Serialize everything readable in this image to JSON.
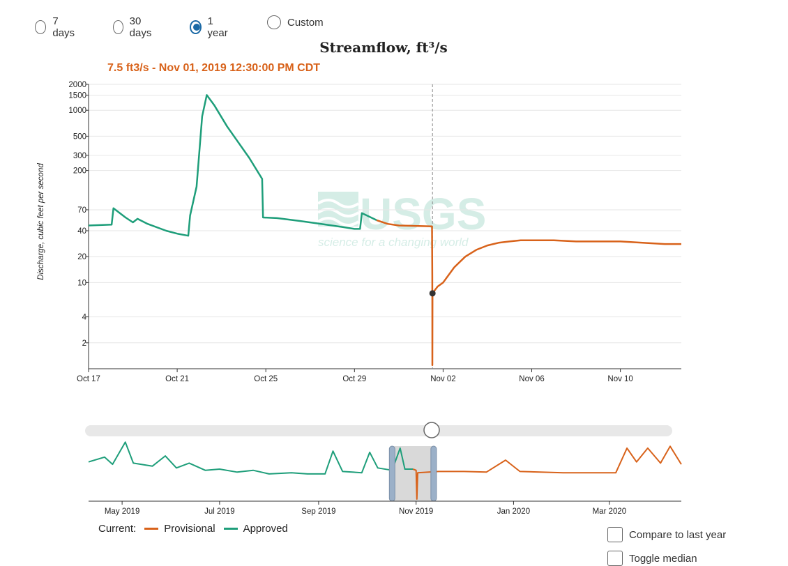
{
  "period_options": [
    {
      "label": "7 days",
      "selected": false
    },
    {
      "label": "30 days",
      "selected": false
    },
    {
      "label": "1 year",
      "selected": true
    },
    {
      "label": "Custom",
      "selected": false
    }
  ],
  "tooltip_text": "7.5 ft3/s - Nov 01, 2019 12:30:00 PM CDT",
  "watermark": {
    "logo": "USGS",
    "tagline": "science for a changing world"
  },
  "legend": {
    "title": "Current:",
    "items": [
      {
        "label": "Provisional",
        "color": "#d8621a"
      },
      {
        "label": "Approved",
        "color": "#1e9e7a"
      }
    ]
  },
  "checkboxes": [
    {
      "label": "Compare to last year",
      "checked": false
    },
    {
      "label": "Toggle median",
      "checked": false
    }
  ],
  "colors": {
    "approved": "#1e9e7a",
    "provisional": "#d8621a",
    "cursor_dot": "#333333",
    "brush": "#9bb0c8"
  },
  "chart_data": [
    {
      "type": "line",
      "title": "Streamflow, ft³/s",
      "ylabel": "Discharge, cubic feet per second",
      "yscale": "log",
      "ylim": [
        1,
        2000
      ],
      "yticks": [
        2000,
        1500,
        1000,
        500,
        300,
        200,
        70,
        40,
        20,
        10,
        4,
        2
      ],
      "xlim": [
        "2019-10-17",
        "2019-11-12T18:00"
      ],
      "xticks": [
        "Oct 17",
        "Oct 21",
        "Oct 25",
        "Oct 29",
        "Nov 02",
        "Nov 06",
        "Nov 10"
      ],
      "grid": true,
      "cursor": {
        "x": "2019-11-01T12:30",
        "y": 7.5
      },
      "series": [
        {
          "name": "Approved",
          "points": [
            [
              "2019-10-17T00:00",
              46
            ],
            [
              "2019-10-18T01:00",
              47
            ],
            [
              "2019-10-18T03:00",
              73
            ],
            [
              "2019-10-18T16:00",
              57
            ],
            [
              "2019-10-19T00:00",
              50
            ],
            [
              "2019-10-19T05:00",
              55
            ],
            [
              "2019-10-19T16:00",
              48
            ],
            [
              "2019-10-20T12:00",
              40
            ],
            [
              "2019-10-21T00:00",
              37
            ],
            [
              "2019-10-21T12:00",
              35
            ],
            [
              "2019-10-21T14:00",
              60
            ],
            [
              "2019-10-21T21:00",
              130
            ],
            [
              "2019-10-22T03:00",
              850
            ],
            [
              "2019-10-22T08:00",
              1500
            ],
            [
              "2019-10-22T16:00",
              1150
            ],
            [
              "2019-10-23T06:00",
              650
            ],
            [
              "2019-10-24T06:00",
              280
            ],
            [
              "2019-10-24T20:00",
              160
            ],
            [
              "2019-10-24T21:00",
              57
            ],
            [
              "2019-10-25T12:00",
              56
            ],
            [
              "2019-10-26T12:00",
              52
            ],
            [
              "2019-10-27T12:00",
              48
            ],
            [
              "2019-10-28T12:00",
              44
            ],
            [
              "2019-10-29T00:00",
              42
            ],
            [
              "2019-10-29T06:00",
              42
            ],
            [
              "2019-10-29T08:00",
              64
            ],
            [
              "2019-10-29T12:00",
              61
            ],
            [
              "2019-10-30T00:00",
              53
            ]
          ]
        },
        {
          "name": "Provisional",
          "points": [
            [
              "2019-10-30T00:00",
              53
            ],
            [
              "2019-10-30T12:00",
              48
            ],
            [
              "2019-10-31T00:00",
              46
            ],
            [
              "2019-11-01T12:00",
              45
            ],
            [
              "2019-11-01T12:15",
              12
            ],
            [
              "2019-11-01T12:20",
              1.1
            ],
            [
              "2019-11-01T12:30",
              7.5
            ],
            [
              "2019-11-01T18:00",
              9
            ],
            [
              "2019-11-02T00:00",
              10
            ],
            [
              "2019-11-02T12:00",
              15
            ],
            [
              "2019-11-03T00:00",
              20
            ],
            [
              "2019-11-03T12:00",
              24
            ],
            [
              "2019-11-04T00:00",
              27
            ],
            [
              "2019-11-04T12:00",
              29
            ],
            [
              "2019-11-05T00:00",
              30
            ],
            [
              "2019-11-05T12:00",
              31
            ],
            [
              "2019-11-06T00:00",
              31
            ],
            [
              "2019-11-07T00:00",
              31
            ],
            [
              "2019-11-08T00:00",
              30
            ],
            [
              "2019-11-09T00:00",
              30
            ],
            [
              "2019-11-10T00:00",
              30
            ],
            [
              "2019-11-11T00:00",
              29
            ],
            [
              "2019-11-12T00:00",
              28
            ],
            [
              "2019-11-12T18:00",
              28
            ]
          ]
        }
      ]
    },
    {
      "type": "line",
      "xticks": [
        "May 2019",
        "Jul 2019",
        "Sep 2019",
        "Nov 2019",
        "Jan 2020",
        "Mar 2020"
      ],
      "xlim": [
        "2019-04-10",
        "2020-04-15"
      ],
      "selection": [
        "2019-10-17",
        "2019-11-12"
      ],
      "series": [
        {
          "name": "Approved",
          "points": [
            [
              "2019-04-10",
              0.62
            ],
            [
              "2019-04-20",
              0.7
            ],
            [
              "2019-04-25",
              0.58
            ],
            [
              "2019-05-03",
              0.95
            ],
            [
              "2019-05-08",
              0.6
            ],
            [
              "2019-05-20",
              0.55
            ],
            [
              "2019-05-28",
              0.72
            ],
            [
              "2019-06-04",
              0.52
            ],
            [
              "2019-06-12",
              0.6
            ],
            [
              "2019-06-22",
              0.48
            ],
            [
              "2019-07-01",
              0.5
            ],
            [
              "2019-07-12",
              0.45
            ],
            [
              "2019-07-22",
              0.48
            ],
            [
              "2019-08-01",
              0.42
            ],
            [
              "2019-08-15",
              0.44
            ],
            [
              "2019-08-25",
              0.42
            ],
            [
              "2019-09-05",
              0.42
            ],
            [
              "2019-09-10",
              0.8
            ],
            [
              "2019-09-16",
              0.46
            ],
            [
              "2019-09-28",
              0.44
            ],
            [
              "2019-10-03",
              0.78
            ],
            [
              "2019-10-08",
              0.52
            ],
            [
              "2019-10-17",
              0.48
            ],
            [
              "2019-10-22",
              0.85
            ],
            [
              "2019-10-25",
              0.5
            ],
            [
              "2019-10-30",
              0.5
            ]
          ]
        },
        {
          "name": "Provisional",
          "points": [
            [
              "2019-10-30",
              0.5
            ],
            [
              "2019-11-01",
              0.48
            ],
            [
              "2019-11-01T12:00",
              0.0
            ],
            [
              "2019-11-02",
              0.44
            ],
            [
              "2019-11-15",
              0.46
            ],
            [
              "2019-12-01",
              0.46
            ],
            [
              "2019-12-15",
              0.45
            ],
            [
              "2019-12-27",
              0.65
            ],
            [
              "2020-01-05",
              0.46
            ],
            [
              "2020-02-01",
              0.44
            ],
            [
              "2020-03-05",
              0.44
            ],
            [
              "2020-03-12",
              0.85
            ],
            [
              "2020-03-18",
              0.62
            ],
            [
              "2020-03-25",
              0.85
            ],
            [
              "2020-04-02",
              0.6
            ],
            [
              "2020-04-08",
              0.88
            ],
            [
              "2020-04-15",
              0.58
            ]
          ]
        }
      ]
    }
  ]
}
